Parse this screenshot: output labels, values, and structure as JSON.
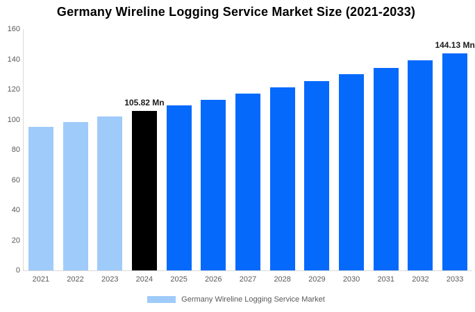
{
  "chart_data": {
    "type": "bar",
    "title": "Germany Wireline Logging Service Market Size (2021-2033)",
    "categories": [
      "2021",
      "2022",
      "2023",
      "2024",
      "2025",
      "2026",
      "2027",
      "2028",
      "2029",
      "2030",
      "2031",
      "2032",
      "2033"
    ],
    "values": [
      95.1,
      98.4,
      102.0,
      105.82,
      109.5,
      113.3,
      117.2,
      121.3,
      125.5,
      129.9,
      134.4,
      139.1,
      144.13
    ],
    "unit": "Mn",
    "bar_roles": [
      "historical",
      "historical",
      "historical",
      "current",
      "forecast",
      "forecast",
      "forecast",
      "forecast",
      "forecast",
      "forecast",
      "forecast",
      "forecast",
      "forecast"
    ],
    "colors": {
      "historical": "#9fcbfa",
      "current": "#000000",
      "forecast": "#0569fc"
    },
    "annotations": [
      {
        "category": "2024",
        "text": "105.82 Mn"
      },
      {
        "category": "2033",
        "text": "144.13 Mn"
      }
    ],
    "xlabel": "",
    "ylabel": "",
    "ylim": [
      0,
      160
    ],
    "yticks": [
      0,
      20,
      40,
      60,
      80,
      100,
      120,
      140,
      160
    ],
    "grid": false,
    "legend_position": "bottom"
  },
  "legend": {
    "label": "Germany Wireline Logging Service Market",
    "swatch_color": "#9fcbfa"
  },
  "style_colors": {
    "axis_line": "#d9d9d9",
    "axis_text": "#595959",
    "title_text": "#000000",
    "annotation_text": "#1a1a1a"
  }
}
